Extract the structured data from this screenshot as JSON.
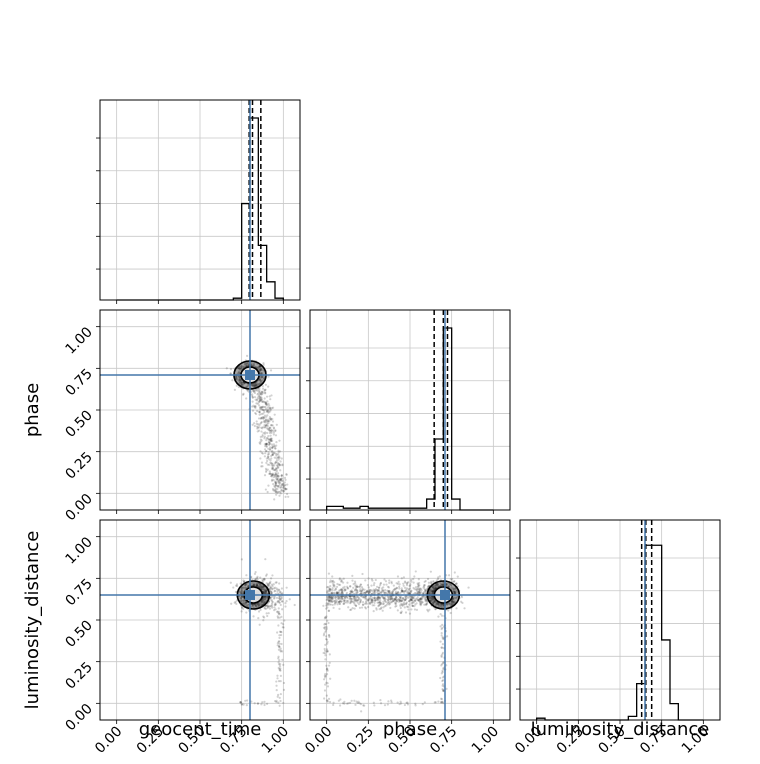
{
  "chart_data": {
    "type": "corner",
    "parameters": [
      "geocent_time",
      "phase",
      "luminosity_distance"
    ],
    "axis_range": [
      -0.1,
      1.1
    ],
    "tick_labels": [
      "0.00",
      "0.25",
      "0.50",
      "0.75",
      "1.00"
    ],
    "tick_values": [
      0,
      0.25,
      0.5,
      0.75,
      1.0
    ],
    "grid": true,
    "colors": {
      "truth": "#4477aa",
      "hist": "#000000",
      "scatter": "#333333"
    },
    "truths": {
      "geocent_time": 0.8,
      "phase": 0.71,
      "luminosity_distance": 0.65
    },
    "quantiles": {
      "geocent_time": [
        0.795,
        0.815,
        0.865
      ],
      "phase": [
        0.645,
        0.7,
        0.725
      ],
      "luminosity_distance": [
        0.63,
        0.655,
        0.69
      ]
    },
    "histograms": {
      "geocent_time": {
        "edges": [
          0.0,
          0.05,
          0.1,
          0.15,
          0.2,
          0.25,
          0.3,
          0.35,
          0.4,
          0.45,
          0.5,
          0.55,
          0.6,
          0.65,
          0.7,
          0.75,
          0.8,
          0.85,
          0.9,
          0.95,
          1.0
        ],
        "counts": [
          0,
          0,
          0,
          0,
          0,
          0,
          0,
          0,
          0,
          0,
          0,
          0,
          0,
          0,
          0.01,
          0.53,
          1.0,
          0.3,
          0.1,
          0.01
        ]
      },
      "phase": {
        "edges": [
          0.0,
          0.05,
          0.1,
          0.15,
          0.2,
          0.25,
          0.3,
          0.35,
          0.4,
          0.45,
          0.5,
          0.55,
          0.6,
          0.65,
          0.7,
          0.75,
          0.8,
          0.85,
          0.9,
          0.95,
          1.0
        ],
        "counts": [
          0.02,
          0.02,
          0.01,
          0.01,
          0.02,
          0.01,
          0.01,
          0.01,
          0.01,
          0.01,
          0.01,
          0.01,
          0.06,
          0.39,
          1.0,
          0.06,
          0,
          0,
          0,
          0
        ]
      },
      "luminosity_distance": {
        "edges": [
          0.0,
          0.05,
          0.1,
          0.15,
          0.2,
          0.25,
          0.3,
          0.35,
          0.4,
          0.45,
          0.5,
          0.55,
          0.6,
          0.65,
          0.7,
          0.75,
          0.8,
          0.85,
          0.9,
          0.95,
          1.0
        ],
        "counts": [
          0.01,
          0,
          0,
          0,
          0,
          0,
          0,
          0,
          0,
          0,
          0,
          0.02,
          0.2,
          0.96,
          0.96,
          0.44,
          0.09,
          0,
          0,
          0
        ]
      }
    },
    "scatter_panels": [
      {
        "x": "geocent_time",
        "y": "phase",
        "center": [
          0.8,
          0.71
        ],
        "tail_to": [
          0.98,
          0.0
        ]
      },
      {
        "x": "geocent_time",
        "y": "luminosity_distance",
        "center": [
          0.82,
          0.65
        ],
        "floor_y": 0.0
      },
      {
        "x": "phase",
        "y": "luminosity_distance",
        "center": [
          0.7,
          0.65
        ],
        "band_y": 0.64,
        "floor_y": 0.0
      }
    ]
  }
}
